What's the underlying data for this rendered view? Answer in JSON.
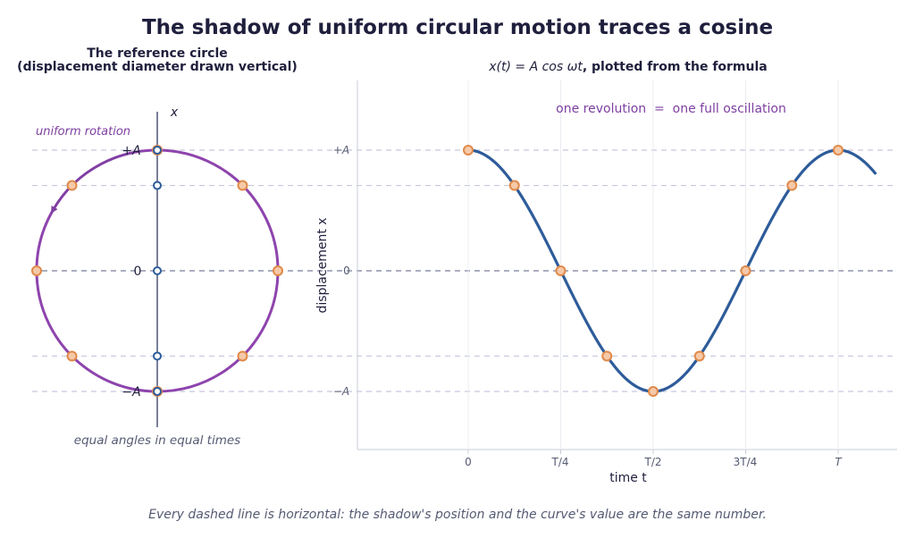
{
  "title": "The shadow of uniform circular motion traces a cosine",
  "left_panel": {
    "title_line1": "The reference circle",
    "title_line2": "(displacement diameter drawn vertical)",
    "axis_label": "x",
    "label_plus_a": "+A",
    "label_zero": "0",
    "label_minus_a": "−A",
    "rotation_note": "uniform rotation",
    "bottom_note": "equal angles in equal times"
  },
  "right_panel": {
    "title_formula": "x(t) = A cos ωt",
    "title_rest": ", plotted from the formula",
    "annotation": "one revolution  =  one full oscillation",
    "ylabel": "displacement x",
    "xlabel": "time t",
    "y_ticks": [
      "+A",
      "0",
      "−A"
    ],
    "x_ticks": [
      "0",
      "T/4",
      "T/2",
      "3T/4",
      "T"
    ]
  },
  "footer": "Every dashed line is horizontal: the shadow's position and the curve's value are the same number.",
  "colors": {
    "circle": "#8e44ad",
    "curve": "#2e5c9a",
    "marker_fill": "#f5c9a8",
    "marker_edge": "#e08a4a",
    "shadow_edge": "#2e5c9a",
    "dashed": "#c5c8dc",
    "axis": "#7a7f99"
  },
  "chart_data": {
    "type": "line",
    "function": "x(t) = A cos(2π t / T)",
    "x_unit": "T",
    "amplitude_unit": "A",
    "x": [
      0,
      0.125,
      0.25,
      0.375,
      0.5,
      0.625,
      0.75,
      0.875,
      1.0
    ],
    "marker_values": [
      1,
      0.707,
      0,
      -0.707,
      -1,
      -0.707,
      0,
      0.707,
      1
    ],
    "curve_domain": [
      0,
      1.1
    ],
    "xlim": [
      -0.3,
      1.16
    ],
    "ylim": [
      -1.48,
      1.6
    ],
    "circle_marker_angles_deg": [
      0,
      45,
      90,
      135,
      180,
      225,
      270,
      315
    ],
    "shadow_values": [
      1,
      0.707,
      0,
      -0.707,
      -1
    ]
  }
}
